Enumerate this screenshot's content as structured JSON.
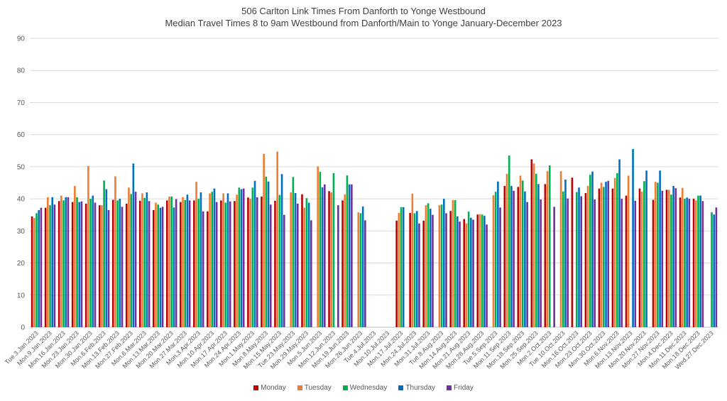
{
  "chart_data": {
    "type": "bar",
    "title": "506 Carlton Link Times From Danforth to Yonge Westbound",
    "subtitle": "Median Travel Times 8 to 9am Westbound from Danforth/Main to Yonge January-December 2023",
    "xlabel": "",
    "ylabel": "",
    "ylim": [
      0,
      90
    ],
    "yticks": [
      0,
      10,
      20,
      30,
      40,
      50,
      60,
      70,
      80,
      90
    ],
    "grid": true,
    "legend_position": "bottom",
    "categories": [
      "Tue.3.Jan.2023",
      "Mon.9.Jan.2023",
      "Mon.16.Jan.2023",
      "Mon.23.Jan.2023",
      "Mon.30.Jan.2023",
      "Mon.6.Feb.2023",
      "Mon.13.Feb.2023",
      "Mon.27.Feb.2023",
      "Mon.6.Mar.2023",
      "Mon.13.Mar.2023",
      "Mon.20.Mar.2023",
      "Mon.27.Mar.2023",
      "Mon.3.Apr.2023",
      "Mon.10.Apr.2023",
      "Mon.17.Apr.2023",
      "Mon.24.Apr.2023",
      "Mon.1.May.2023",
      "Mon.8.May.2023",
      "Mon.15.May.2023",
      "Tue.23.May.2023",
      "Mon.29.May.2023",
      "Mon.5.Jun.2023",
      "Mon.12.Jun.2023",
      "Mon.19.Jun.2023",
      "Mon.26.Jun.2023",
      "Tue.4.Jul.2023",
      "Mon.10.Jul.2023",
      "Mon.17.Jul.2023",
      "Mon.24.Jul.2023",
      "Mon.31.Jul.2023",
      "Tue.8.Aug.2023",
      "Mon.14.Aug.2023",
      "Mon.21.Aug.2023",
      "Mon.28.Aug.2023",
      "Tue.5.Sep.2023",
      "Mon.11.Sep.2023",
      "Mon.18.Sep.2023",
      "Mon.25.Sep.2023",
      "Mon.2.Oct.2023",
      "Tue.10.Oct.2023",
      "Mon.16.Oct.2023",
      "Mon.23.Oct.2023",
      "Mon.30.Oct.2023",
      "Mon.6.Nov.2023",
      "Mon.13.Nov.2023",
      "Mon.20.Nov.2023",
      "Mon.27.Nov.2023",
      "Mon.4.Dec.2023",
      "Mon.11.Dec.2023",
      "Mon.18.Dec.2023",
      "Wed.27.Dec.2023"
    ],
    "series": [
      {
        "name": "Monday",
        "color": "#c00000",
        "values": [
          34.5,
          37.2,
          39.3,
          39,
          38.5,
          38,
          39.7,
          38.5,
          39.4,
          36.5,
          39.5,
          39,
          39.5,
          36.1,
          39.5,
          39.3,
          40.4,
          40.7,
          39.4,
          null,
          41.4,
          null,
          42.4,
          39.5,
          null,
          null,
          null,
          33.2,
          35.6,
          33.2,
          null,
          36.2,
          33.7,
          35.1,
          null,
          44,
          43.7,
          52.3,
          44.6,
          null,
          46.6,
          41.8,
          43.2,
          43.2,
          41,
          43.2,
          39.7,
          42.8,
          40.4,
          40,
          null
        ]
      },
      {
        "name": "Tuesday",
        "color": "#ed7d31",
        "values": [
          34,
          40.5,
          41,
          44,
          50.2,
          38,
          47,
          43.5,
          41.7,
          38.8,
          40.7,
          40.5,
          45.3,
          41.7,
          41.7,
          41.3,
          40,
          54,
          54.7,
          42,
          37.2,
          50.1,
          42,
          41.4,
          35.8,
          null,
          null,
          35.6,
          41.6,
          38,
          38,
          39.6,
          32.3,
          35.2,
          41.1,
          47.8,
          47.2,
          51,
          48.6,
          48.6,
          null,
          44,
          45,
          46.5,
          47.2,
          42.2,
          45.3,
          42.8,
          43.4,
          39.5,
          null
        ]
      },
      {
        "name": "Wednesday",
        "color": "#00b050",
        "values": [
          35.5,
          38,
          39.5,
          40.5,
          40,
          45.7,
          39.5,
          41.5,
          40.3,
          38.2,
          40.7,
          39.6,
          40,
          42.2,
          38.8,
          43.5,
          43.5,
          46.9,
          41.2,
          46.8,
          40.2,
          48.4,
          48,
          47.3,
          35.5,
          null,
          null,
          37.4,
          35.5,
          38.6,
          38.2,
          39.6,
          36,
          35.1,
          42.2,
          53.5,
          45.7,
          47.8,
          50.4,
          42.3,
          42.1,
          47.5,
          43.7,
          48,
          null,
          45.5,
          45,
          41.3,
          40,
          41,
          35.8
        ]
      },
      {
        "name": "Thursday",
        "color": "#0070c0",
        "values": [
          36.5,
          40.5,
          40.5,
          39,
          41,
          43,
          40,
          51,
          42,
          37.2,
          37.3,
          41.3,
          42,
          43.2,
          41.7,
          43,
          45.6,
          45.4,
          47.7,
          41.8,
          38.8,
          43.6,
          null,
          44.5,
          37.6,
          null,
          null,
          37.4,
          36.2,
          36.9,
          40,
          34.5,
          34.1,
          34.7,
          45.4,
          44,
          42.3,
          44.6,
          null,
          46,
          43.5,
          48.5,
          45.3,
          52.3,
          55.5,
          48.8,
          48.8,
          44,
          40.4,
          41,
          35.1
        ]
      },
      {
        "name": "Friday",
        "color": "#7030a0",
        "values": [
          37.2,
          38.2,
          40.5,
          39.2,
          38.8,
          36.5,
          37.5,
          42.2,
          39.3,
          37.5,
          39.9,
          39.5,
          36.1,
          39,
          39.2,
          43.2,
          40.5,
          38.2,
          35,
          38.5,
          33.3,
          44.5,
          38,
          44.5,
          33.3,
          null,
          null,
          null,
          32.3,
          35,
          35.5,
          32.9,
          33.5,
          32,
          37.3,
          42.5,
          39,
          39.8,
          37.5,
          40.1,
          40.8,
          39.8,
          45.6,
          40,
          39.4,
          null,
          42.5,
          43.3,
          40,
          39.3,
          37.3
        ]
      }
    ]
  }
}
